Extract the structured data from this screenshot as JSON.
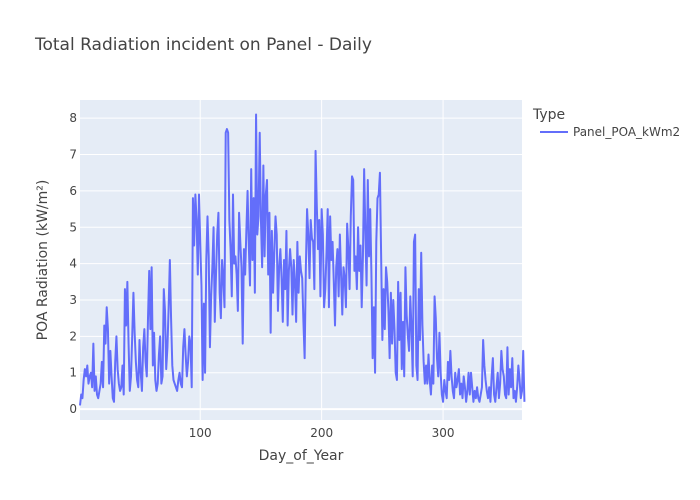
{
  "chart_data": {
    "type": "line",
    "title": "Total Radiation incident on Panel - Daily",
    "xlabel": "Day_of_Year",
    "ylabel": "POA Radiation (kW/m²)",
    "xlim": [
      1,
      365
    ],
    "ylim": [
      -0.3,
      8.5
    ],
    "x_ticks": [
      100,
      200,
      300
    ],
    "y_ticks": [
      0,
      1,
      2,
      3,
      4,
      5,
      6,
      7,
      8
    ],
    "grid": true,
    "legend": {
      "title": "Type",
      "position": "top-right"
    },
    "colors": {
      "plot_bg": "#E5ECF6",
      "line": "#636EFA"
    },
    "series": [
      {
        "name": "Panel_POA_kWm2",
        "x_start": 1,
        "x_step": 1,
        "values": [
          0.1,
          0.4,
          0.3,
          0.8,
          1.1,
          0.9,
          1.2,
          0.7,
          0.9,
          1.0,
          0.6,
          1.8,
          0.5,
          0.9,
          0.4,
          0.3,
          0.5,
          0.7,
          1.3,
          0.6,
          2.3,
          1.8,
          2.8,
          2.2,
          0.7,
          1.6,
          0.9,
          0.3,
          0.2,
          1.3,
          2.0,
          1.1,
          0.7,
          0.5,
          0.6,
          1.2,
          0.4,
          3.3,
          2.3,
          3.5,
          1.8,
          0.5,
          0.9,
          2.0,
          3.2,
          2.1,
          1.3,
          0.8,
          0.6,
          1.9,
          1.0,
          0.5,
          1.7,
          2.2,
          1.3,
          0.9,
          2.5,
          3.8,
          2.2,
          3.9,
          1.2,
          2.1,
          0.8,
          0.5,
          0.7,
          1.5,
          2.0,
          0.7,
          0.9,
          3.3,
          2.7,
          1.1,
          1.7,
          2.8,
          4.1,
          2.5,
          1.2,
          0.8,
          0.7,
          0.6,
          0.5,
          0.8,
          1.0,
          0.7,
          0.6,
          1.7,
          2.2,
          1.5,
          0.9,
          1.3,
          2.0,
          1.8,
          0.6,
          5.8,
          4.5,
          5.9,
          5.2,
          3.7,
          5.9,
          4.6,
          3.4,
          0.8,
          2.9,
          1.0,
          4.1,
          5.3,
          4.2,
          1.7,
          3.1,
          3.9,
          5.0,
          2.4,
          3.7,
          4.8,
          5.4,
          3.2,
          2.5,
          4.1,
          3.6,
          2.8,
          7.6,
          7.7,
          7.6,
          5.2,
          4.4,
          3.1,
          5.9,
          4.0,
          4.2,
          3.7,
          2.7,
          5.4,
          4.6,
          3.9,
          1.8,
          4.4,
          3.7,
          4.9,
          6.0,
          4.5,
          3.4,
          6.6,
          4.1,
          5.8,
          3.2,
          8.1,
          4.8,
          5.3,
          7.6,
          5.2,
          3.9,
          6.7,
          4.2,
          5.9,
          6.3,
          3.7,
          5.4,
          2.1,
          4.9,
          3.2,
          4.3,
          5.3,
          4.8,
          2.7,
          3.9,
          4.4,
          3.6,
          2.4,
          4.1,
          3.3,
          4.9,
          2.3,
          3.8,
          4.4,
          3.9,
          2.6,
          4.1,
          3.5,
          2.4,
          4.6,
          3.2,
          4.2,
          3.8,
          3.6,
          2.4,
          1.4,
          3.9,
          5.5,
          4.8,
          3.6,
          5.2,
          4.7,
          4.6,
          3.3,
          7.1,
          5.6,
          4.4,
          5.2,
          3.1,
          5.5,
          4.8,
          2.8,
          3.3,
          4.3,
          5.5,
          2.8,
          5.3,
          4.1,
          4.6,
          3.5,
          2.3,
          3.9,
          4.4,
          3.1,
          4.8,
          3.7,
          2.6,
          3.9,
          3.6,
          2.8,
          5.1,
          4.4,
          3.3,
          5.3,
          6.4,
          6.3,
          3.8,
          4.2,
          3.3,
          5.0,
          3.8,
          4.5,
          2.8,
          4.2,
          6.6,
          4.9,
          3.4,
          6.3,
          4.2,
          5.5,
          3.7,
          1.4,
          2.8,
          1.0,
          4.6,
          5.8,
          5.9,
          6.5,
          4.2,
          1.9,
          3.3,
          2.2,
          3.9,
          3.5,
          2.7,
          1.4,
          3.2,
          1.8,
          3.0,
          2.2,
          1.0,
          0.8,
          3.5,
          1.9,
          3.2,
          1.1,
          2.4,
          0.9,
          3.9,
          2.6,
          2.0,
          1.6,
          3.1,
          2.2,
          0.9,
          4.6,
          4.8,
          1.2,
          0.8,
          3.3,
          1.9,
          4.3,
          2.3,
          1.3,
          0.7,
          1.2,
          0.7,
          1.5,
          0.8,
          0.4,
          1.2,
          0.7,
          3.1,
          2.5,
          1.4,
          0.9,
          2.1,
          1.0,
          0.4,
          0.2,
          0.8,
          0.5,
          0.3,
          1.3,
          0.8,
          1.6,
          0.9,
          0.5,
          0.3,
          1.0,
          0.6,
          0.8,
          1.1,
          0.4,
          0.7,
          0.3,
          0.9,
          0.6,
          0.2,
          0.5,
          1.0,
          0.4,
          1.0,
          0.6,
          0.2,
          0.5,
          0.3,
          0.6,
          0.3,
          0.2,
          0.4,
          0.6,
          1.9,
          1.2,
          0.8,
          0.5,
          0.3,
          0.6,
          0.2,
          0.9,
          1.4,
          0.4,
          0.2,
          0.6,
          1.0,
          0.3,
          0.7,
          1.6,
          1.1,
          0.9,
          0.4,
          0.3,
          1.7,
          0.4,
          1.1,
          0.6,
          1.4,
          0.3,
          0.5,
          0.2,
          0.6,
          1.2,
          0.8,
          0.3,
          0.5,
          1.6,
          0.2
        ]
      }
    ]
  }
}
